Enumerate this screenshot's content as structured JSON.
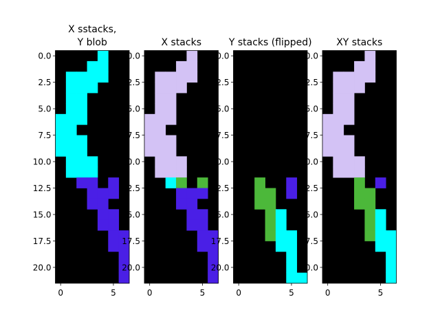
{
  "colors": {
    "black": "#000000",
    "cyan": "#00ffff",
    "lavender": "#d3c2f5",
    "violet": "#4a1fe6",
    "green": "#4cb83a"
  },
  "chart_data": [
    {
      "type": "heatmap",
      "title_lines": [
        "X sstacks,",
        "Y blob"
      ],
      "xlim": [
        -0.5,
        6.5
      ],
      "ylim": [
        21.5,
        -0.5
      ],
      "xticks": [
        "0",
        "5"
      ],
      "yticks": [
        "0.0",
        "2.5",
        "5.0",
        "7.5",
        "10.0",
        "12.5",
        "15.0",
        "17.5",
        "20.0"
      ],
      "legend": [
        {
          "code": 1,
          "color": "#00ffff"
        },
        {
          "code": 2,
          "color": "#4a1fe6"
        }
      ],
      "grid": [
        "0000100",
        "0001100",
        "0111100",
        "0111000",
        "0110000",
        "0110000",
        "1110000",
        "1100000",
        "1110000",
        "1110000",
        "0111000",
        "0111000",
        "0022020",
        "0002220",
        "0002200",
        "0000220",
        "0000220",
        "0000022",
        "0000022",
        "0000002",
        "0000002",
        "0000002"
      ]
    },
    {
      "type": "heatmap",
      "title_lines": [
        "X stacks"
      ],
      "xlim": [
        -0.5,
        6.5
      ],
      "ylim": [
        21.5,
        -0.5
      ],
      "xticks": [
        "0",
        "5"
      ],
      "yticks": [
        "0.0",
        "2.5",
        "5.0",
        "7.5",
        "10.0",
        "12.5",
        "15.0",
        "17.5",
        "20.0"
      ],
      "legend": [
        {
          "code": 1,
          "color": "#d3c2f5"
        },
        {
          "code": 2,
          "color": "#4a1fe6"
        },
        {
          "code": 3,
          "color": "#00ffff"
        },
        {
          "code": 4,
          "color": "#4cb83a"
        }
      ],
      "grid": [
        "0000100",
        "0001100",
        "0111100",
        "0111000",
        "0110000",
        "0110000",
        "1110000",
        "1100000",
        "1110000",
        "1110000",
        "0111000",
        "0111000",
        "0034040",
        "0002220",
        "0002200",
        "0000220",
        "0000220",
        "0000022",
        "0000022",
        "0000002",
        "0000002",
        "0000002"
      ]
    },
    {
      "type": "heatmap",
      "title_lines": [
        "Y stacks (flipped)"
      ],
      "xlim": [
        -0.5,
        6.5
      ],
      "ylim": [
        21.5,
        -0.5
      ],
      "xticks": [
        "0",
        "5"
      ],
      "yticks": [
        "0.0",
        "2.5",
        "5.0",
        "7.5",
        "10.0",
        "12.5",
        "15.0",
        "17.5",
        "20.0"
      ],
      "legend": [
        {
          "code": 1,
          "color": "#4cb83a"
        },
        {
          "code": 2,
          "color": "#4a1fe6"
        },
        {
          "code": 3,
          "color": "#00ffff"
        }
      ],
      "grid": [
        "0000000",
        "0000000",
        "0000000",
        "0000000",
        "0000000",
        "0000000",
        "0000000",
        "0000000",
        "0000000",
        "0000000",
        "0000000",
        "0000000",
        "0010020",
        "0011020",
        "0011000",
        "0001300",
        "0001300",
        "0001330",
        "0000330",
        "0000030",
        "0000030",
        "0000033"
      ]
    },
    {
      "type": "heatmap",
      "title_lines": [
        "XY stacks"
      ],
      "xlim": [
        -0.5,
        6.5
      ],
      "ylim": [
        21.5,
        -0.5
      ],
      "xticks": [
        "0",
        "5"
      ],
      "yticks": [
        "0.0",
        "2.5",
        "5.0",
        "7.5",
        "10.0",
        "12.5",
        "15.0",
        "17.5",
        "20.0"
      ],
      "legend": [
        {
          "code": 1,
          "color": "#d3c2f5"
        },
        {
          "code": 2,
          "color": "#4a1fe6"
        },
        {
          "code": 3,
          "color": "#00ffff"
        },
        {
          "code": 4,
          "color": "#4cb83a"
        }
      ],
      "grid": [
        "0000100",
        "0001100",
        "0111100",
        "0111000",
        "0110000",
        "0110000",
        "1110000",
        "1100000",
        "1110000",
        "1110000",
        "0111000",
        "0111000",
        "0004020",
        "0004400",
        "0004400",
        "0000430",
        "0000430",
        "0000433",
        "0000033",
        "0000003",
        "0000003",
        "0000003"
      ]
    }
  ]
}
